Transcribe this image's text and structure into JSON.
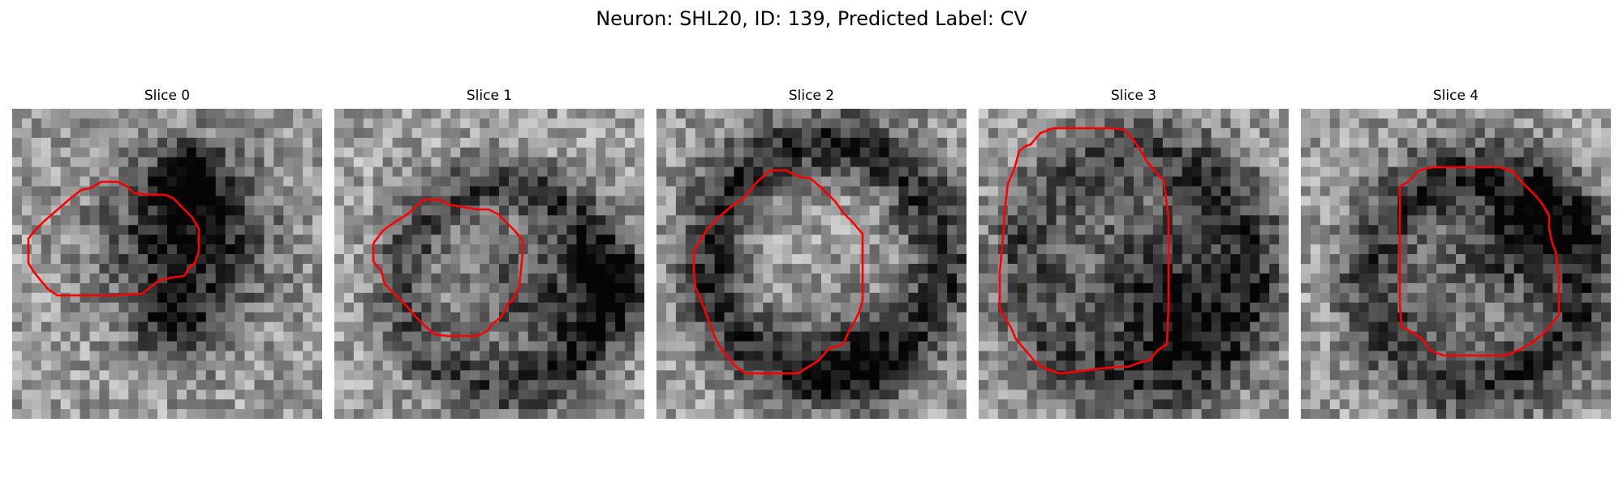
{
  "figure": {
    "title": "Neuron: SHL20, ID: 139, Predicted Label: CV"
  },
  "panels": [
    {
      "label": "Slice 0"
    },
    {
      "label": "Slice 1"
    },
    {
      "label": "Slice 2"
    },
    {
      "label": "Slice 3"
    },
    {
      "label": "Slice 4"
    }
  ],
  "colors": {
    "contour": "#ff0000",
    "colormap": "gray"
  }
}
